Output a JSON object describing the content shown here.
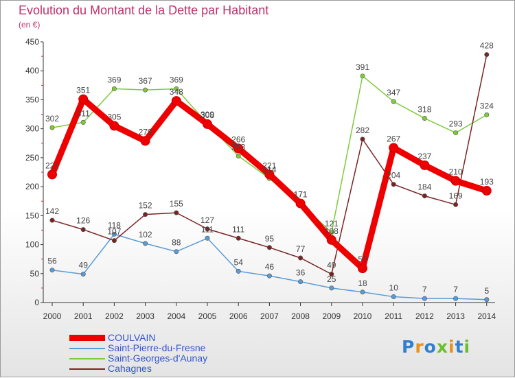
{
  "title": "Evolution du Montant de la Dette par Habitant",
  "subtitle": "(en €)",
  "logo": "Proxiti",
  "chart_data": {
    "type": "line",
    "x": [
      "2000",
      "2001",
      "2002",
      "2003",
      "2004",
      "2005",
      "2006",
      "2007",
      "2008",
      "2009",
      "2010",
      "2011",
      "2012",
      "2013",
      "2014"
    ],
    "ylim": [
      0,
      450
    ],
    "yticks": [
      0,
      50,
      100,
      150,
      200,
      250,
      300,
      350,
      400,
      450
    ],
    "grid": false,
    "legend_position": "bottom-left",
    "series": [
      {
        "name": "COULVAIN",
        "color": "#ee0000",
        "values": [
          221,
          351,
          305,
          279,
          348,
          308,
          266,
          221,
          171,
          108,
          59,
          267,
          237,
          210,
          193
        ]
      },
      {
        "name": "Saint-Pierre-du-Fresne",
        "color": "#5b9bd5",
        "values": [
          56,
          49,
          118,
          102,
          88,
          111,
          54,
          46,
          36,
          25,
          18,
          10,
          7,
          7,
          5
        ]
      },
      {
        "name": "Saint-Georges-d'Aunay",
        "color": "#7ecb3a",
        "values": [
          302,
          311,
          369,
          367,
          369,
          309,
          253,
          214,
          171,
          121,
          391,
          347,
          318,
          293,
          324
        ]
      },
      {
        "name": "Cahagnes",
        "color": "#7a2323",
        "values": [
          142,
          126,
          107,
          152,
          155,
          127,
          111,
          95,
          77,
          49,
          282,
          204,
          184,
          169,
          428
        ]
      }
    ]
  }
}
